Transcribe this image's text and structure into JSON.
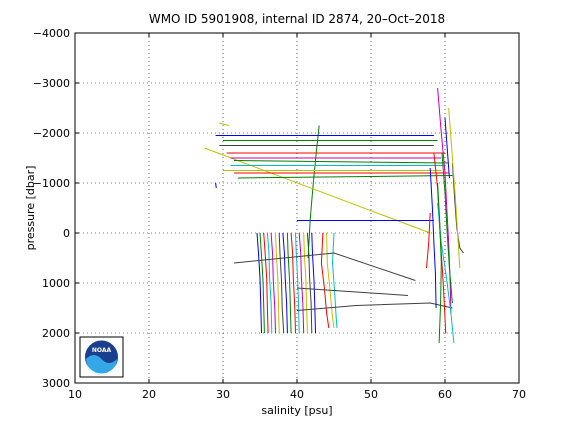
{
  "chart_data": {
    "type": "line",
    "title": "WMO ID 5901908, internal ID 2874, 20–Oct–2018",
    "xlabel": "salinity [psu]",
    "ylabel": "pressure [dbar]",
    "xlim": [
      10,
      70
    ],
    "ylim": [
      3000,
      -4000
    ],
    "y_axis_inverted": true,
    "x_ticks": [
      10,
      20,
      30,
      40,
      50,
      60,
      70
    ],
    "y_ticks": [
      -4000,
      -3000,
      -2000,
      -1000,
      0,
      1000,
      2000,
      3000
    ],
    "x_tick_labels": [
      "10",
      "20",
      "30",
      "40",
      "50",
      "60",
      "70"
    ],
    "y_tick_labels": [
      "−4000",
      "−3000",
      "−2000",
      "−1000",
      "0",
      "1000",
      "2000",
      "3000"
    ],
    "grid": true,
    "grid_style": "dotted",
    "legend": "none",
    "logo": "noaa",
    "series": [
      {
        "color": "#0000ff",
        "points": [
          [
            34.6,
            0
          ],
          [
            34.8,
            400
          ],
          [
            35.0,
            900
          ],
          [
            35.1,
            1400
          ],
          [
            35.2,
            2000
          ]
        ]
      },
      {
        "color": "#008000",
        "points": [
          [
            35.0,
            0
          ],
          [
            35.2,
            450
          ],
          [
            35.4,
            950
          ],
          [
            35.5,
            1450
          ],
          [
            35.6,
            2000
          ]
        ]
      },
      {
        "color": "#ff0000",
        "points": [
          [
            35.5,
            0
          ],
          [
            35.7,
            420
          ],
          [
            35.9,
            900
          ],
          [
            36.0,
            1500
          ],
          [
            36.1,
            2000
          ]
        ]
      },
      {
        "color": "#00bfbf",
        "points": [
          [
            36.0,
            0
          ],
          [
            36.2,
            380
          ],
          [
            36.3,
            900
          ],
          [
            36.5,
            1400
          ],
          [
            36.6,
            2000
          ]
        ]
      },
      {
        "color": "#bf00bf",
        "points": [
          [
            36.5,
            0
          ],
          [
            36.7,
            430
          ],
          [
            36.8,
            950
          ],
          [
            37.0,
            1500
          ],
          [
            37.1,
            2000
          ]
        ]
      },
      {
        "color": "#bfbf00",
        "points": [
          [
            37.1,
            0
          ],
          [
            37.2,
            400
          ],
          [
            37.4,
            900
          ],
          [
            37.5,
            1450
          ],
          [
            37.6,
            2000
          ]
        ]
      },
      {
        "color": "#404040",
        "points": [
          [
            37.6,
            0
          ],
          [
            37.7,
            420
          ],
          [
            37.9,
            950
          ],
          [
            38.0,
            1500
          ],
          [
            38.2,
            2000
          ]
        ]
      },
      {
        "color": "#0000ff",
        "points": [
          [
            38.1,
            0
          ],
          [
            38.3,
            400
          ],
          [
            38.4,
            900
          ],
          [
            38.6,
            1400
          ],
          [
            38.7,
            2000
          ]
        ]
      },
      {
        "color": "#008000",
        "points": [
          [
            38.7,
            0
          ],
          [
            38.8,
            430
          ],
          [
            39.0,
            950
          ],
          [
            39.1,
            1450
          ],
          [
            39.2,
            2000
          ]
        ]
      },
      {
        "color": "#ff0000",
        "points": [
          [
            39.2,
            0
          ],
          [
            39.4,
            400
          ],
          [
            39.5,
            900
          ],
          [
            39.7,
            1500
          ],
          [
            39.8,
            2000
          ]
        ]
      },
      {
        "color": "#00bfbf",
        "points": [
          [
            39.8,
            0
          ],
          [
            39.9,
            420
          ],
          [
            40.1,
            950
          ],
          [
            40.2,
            1400
          ],
          [
            40.3,
            2000
          ]
        ]
      },
      {
        "color": "#bf00bf",
        "points": [
          [
            40.3,
            0
          ],
          [
            40.5,
            400
          ],
          [
            40.6,
            900
          ],
          [
            40.8,
            1450
          ],
          [
            40.9,
            2000
          ]
        ]
      },
      {
        "color": "#bfbf00",
        "points": [
          [
            40.9,
            0
          ],
          [
            41.0,
            430
          ],
          [
            41.2,
            950
          ],
          [
            41.3,
            1500
          ],
          [
            41.4,
            2000
          ]
        ]
      },
      {
        "color": "#404040",
        "points": [
          [
            41.4,
            0
          ],
          [
            41.6,
            400
          ],
          [
            41.7,
            900
          ],
          [
            41.9,
            1400
          ],
          [
            42.0,
            2000
          ]
        ]
      },
      {
        "color": "#0000ff",
        "points": [
          [
            42.0,
            0
          ],
          [
            42.1,
            420
          ],
          [
            42.3,
            950
          ],
          [
            42.4,
            1450
          ],
          [
            42.5,
            2000
          ]
        ]
      },
      {
        "color": "#ff0000",
        "points": [
          [
            43.5,
            0
          ],
          [
            43.3,
            600
          ],
          [
            43.7,
            1100
          ],
          [
            44.0,
            1600
          ],
          [
            44.3,
            1900
          ]
        ]
      },
      {
        "color": "#bfbf00",
        "points": [
          [
            44.0,
            0
          ],
          [
            44.1,
            600
          ],
          [
            44.5,
            1200
          ],
          [
            44.8,
            1700
          ],
          [
            45.0,
            1900
          ]
        ]
      },
      {
        "color": "#00bfbf",
        "points": [
          [
            45.0,
            0
          ],
          [
            44.8,
            600
          ],
          [
            45.1,
            1200
          ],
          [
            45.3,
            1700
          ],
          [
            45.4,
            1900
          ]
        ]
      },
      {
        "color": "#008000",
        "points": [
          [
            41.5,
            500
          ],
          [
            41.8,
            -300
          ],
          [
            42.2,
            -1000
          ],
          [
            42.6,
            -1600
          ],
          [
            43.0,
            -2150
          ]
        ]
      },
      {
        "color": "#404040",
        "points": [
          [
            31.5,
            600
          ],
          [
            45.0,
            400
          ],
          [
            56.0,
            950
          ]
        ]
      },
      {
        "color": "#404040",
        "points": [
          [
            40.0,
            1100
          ],
          [
            55.0,
            1250
          ]
        ]
      },
      {
        "color": "#404040",
        "points": [
          [
            40.0,
            1550
          ],
          [
            48.0,
            1450
          ],
          [
            58.0,
            1400
          ],
          [
            61.0,
            1500
          ]
        ]
      },
      {
        "color": "#bfbf00",
        "points": [
          [
            27.5,
            -1700
          ],
          [
            58.0,
            0
          ]
        ]
      },
      {
        "color": "#0000ff",
        "points": [
          [
            29.0,
            -1950
          ],
          [
            58.5,
            -1950
          ]
        ]
      },
      {
        "color": "#008000",
        "points": [
          [
            30.0,
            -1850
          ],
          [
            59.0,
            -1850
          ]
        ]
      },
      {
        "color": "#404040",
        "points": [
          [
            29.5,
            -1750
          ],
          [
            58.5,
            -1750
          ]
        ]
      },
      {
        "color": "#ff0000",
        "points": [
          [
            30.5,
            -1600
          ],
          [
            60.0,
            -1600
          ]
        ]
      },
      {
        "color": "#bf00bf",
        "points": [
          [
            31.0,
            -1500
          ],
          [
            59.5,
            -1500
          ]
        ]
      },
      {
        "color": "#008000",
        "points": [
          [
            31.5,
            -1450
          ],
          [
            60.5,
            -1400
          ]
        ]
      },
      {
        "color": "#00bfbf",
        "points": [
          [
            31.0,
            -1350
          ],
          [
            60.0,
            -1350
          ]
        ]
      },
      {
        "color": "#bfbf00",
        "points": [
          [
            30.0,
            -1250
          ],
          [
            59.5,
            -1250
          ]
        ]
      },
      {
        "color": "#ff0000",
        "points": [
          [
            31.5,
            -1200
          ],
          [
            60.5,
            -1200
          ]
        ]
      },
      {
        "color": "#008000",
        "points": [
          [
            32.0,
            -1100
          ],
          [
            61.0,
            -1150
          ]
        ]
      },
      {
        "color": "#0000ff",
        "points": [
          [
            40.0,
            -250
          ],
          [
            58.5,
            -250
          ]
        ]
      },
      {
        "color": "#0000ff",
        "points": [
          [
            29.0,
            -1000
          ],
          [
            29.1,
            -900
          ]
        ]
      },
      {
        "color": "#bfbf00",
        "points": [
          [
            29.5,
            -2200
          ],
          [
            30.8,
            -2150
          ]
        ]
      },
      {
        "color": "#ff0000",
        "points": [
          [
            58.5,
            -1600
          ],
          [
            59.0,
            -900
          ],
          [
            59.2,
            -300
          ],
          [
            59.5,
            400
          ],
          [
            59.8,
            1100
          ],
          [
            60.0,
            1700
          ],
          [
            60.1,
            2000
          ]
        ]
      },
      {
        "color": "#bf00bf",
        "points": [
          [
            59.0,
            -2900
          ],
          [
            59.5,
            -2000
          ],
          [
            60.0,
            -1200
          ],
          [
            60.2,
            -600
          ],
          [
            60.5,
            200
          ],
          [
            60.7,
            1000
          ],
          [
            60.8,
            1600
          ]
        ]
      },
      {
        "color": "#0000ff",
        "points": [
          [
            58.0,
            -1300
          ],
          [
            58.3,
            -500
          ],
          [
            58.5,
            200
          ],
          [
            58.7,
            800
          ],
          [
            58.8,
            1500
          ]
        ]
      },
      {
        "color": "#008000",
        "points": [
          [
            59.6,
            -1600
          ],
          [
            60.0,
            -800
          ],
          [
            60.3,
            0
          ],
          [
            60.6,
            700
          ],
          [
            61.0,
            1400
          ]
        ]
      },
      {
        "color": "#00bfbf",
        "points": [
          [
            59.0,
            -600
          ],
          [
            59.5,
            200
          ],
          [
            60.2,
            900
          ],
          [
            60.8,
            1600
          ],
          [
            61.2,
            2200
          ]
        ]
      },
      {
        "color": "#404040",
        "points": [
          [
            61.0,
            -1400
          ],
          [
            61.3,
            -700
          ],
          [
            61.6,
            -100
          ],
          [
            62.0,
            300
          ],
          [
            62.5,
            400
          ]
        ]
      },
      {
        "color": "#bfbf00",
        "points": [
          [
            60.5,
            -2500
          ],
          [
            61.0,
            -1500
          ],
          [
            61.4,
            -700
          ],
          [
            61.7,
            0
          ],
          [
            62.0,
            700
          ]
        ]
      },
      {
        "color": "#008000",
        "points": [
          [
            59.0,
            -1000
          ],
          [
            59.3,
            -200
          ],
          [
            59.5,
            600
          ],
          [
            59.4,
            1400
          ],
          [
            59.2,
            2200
          ]
        ]
      },
      {
        "color": "#ff0000",
        "points": [
          [
            58.0,
            -400
          ],
          [
            57.8,
            200
          ],
          [
            57.5,
            700
          ]
        ]
      },
      {
        "color": "#0000ff",
        "points": [
          [
            60.0,
            -2300
          ],
          [
            60.3,
            -1700
          ],
          [
            60.6,
            -1100
          ]
        ]
      }
    ]
  }
}
